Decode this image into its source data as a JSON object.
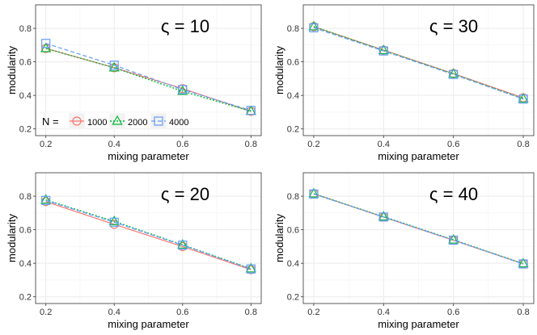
{
  "chart_data": {
    "type": "line",
    "layout": "2x2 facet grid",
    "xlabel": "mixing parameter",
    "ylabel": "modularity",
    "x": [
      0.2,
      0.4,
      0.6,
      0.8
    ],
    "x_tick_labels": [
      "0.2",
      "0.4",
      "0.6",
      "0.8"
    ],
    "xlim": [
      0.17,
      0.83
    ],
    "y_ticks": [
      0.2,
      0.4,
      0.6,
      0.8
    ],
    "y_tick_labels": [
      "0.2",
      "0.4",
      "0.6",
      "0.8"
    ],
    "ylim": [
      0.16,
      0.94
    ],
    "symbol": "ς",
    "legend": {
      "prefix": "N =",
      "placement": "bottom-left of first panel",
      "entries": [
        {
          "label": "1000",
          "marker": "circle",
          "color": "#F8766D",
          "line": "solid"
        },
        {
          "label": "2000",
          "marker": "triangle",
          "color": "#00BA38",
          "line": "dotted"
        },
        {
          "label": "4000",
          "marker": "square",
          "color": "#619CFF",
          "line": "dashed"
        }
      ]
    },
    "panels": [
      {
        "title": "ς = 10",
        "series": [
          {
            "name": "1000",
            "values": [
              0.68,
              0.565,
              0.44,
              0.305
            ]
          },
          {
            "name": "2000",
            "values": [
              0.68,
              0.565,
              0.425,
              0.305
            ]
          },
          {
            "name": "4000",
            "values": [
              0.71,
              0.58,
              0.435,
              0.31
            ]
          }
        ]
      },
      {
        "title": "ς = 30",
        "series": [
          {
            "name": "1000",
            "values": [
              0.81,
              0.67,
              0.53,
              0.385
            ]
          },
          {
            "name": "2000",
            "values": [
              0.81,
              0.668,
              0.528,
              0.38
            ]
          },
          {
            "name": "4000",
            "values": [
              0.803,
              0.665,
              0.525,
              0.378
            ]
          }
        ]
      },
      {
        "title": "ς = 20",
        "series": [
          {
            "name": "1000",
            "values": [
              0.768,
              0.632,
              0.5,
              0.362
            ]
          },
          {
            "name": "2000",
            "values": [
              0.778,
              0.65,
              0.51,
              0.368
            ]
          },
          {
            "name": "4000",
            "values": [
              0.775,
              0.645,
              0.508,
              0.366
            ]
          }
        ]
      },
      {
        "title": "ς = 40",
        "series": [
          {
            "name": "1000",
            "values": [
              0.815,
              0.675,
              0.537,
              0.397
            ]
          },
          {
            "name": "2000",
            "values": [
              0.815,
              0.678,
              0.54,
              0.398
            ]
          },
          {
            "name": "4000",
            "values": [
              0.813,
              0.676,
              0.538,
              0.396
            ]
          }
        ]
      }
    ]
  }
}
